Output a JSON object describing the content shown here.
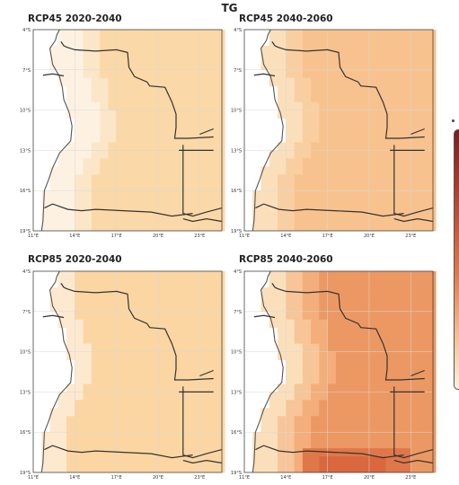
{
  "figure": {
    "title": "TG"
  },
  "legend": {
    "colormap": [
      "#fdf0dc",
      "#f6c28e",
      "#e07a45",
      "#b5412c",
      "#7a1f1f"
    ],
    "position": "right"
  },
  "panels": [
    {
      "id": "rcp45-2020",
      "title": "RCP45 2020-2040",
      "dominant": "#fbd8a7",
      "coastal": [
        [
          "#fdf2e2",
          3
        ],
        [
          "#fbe6c8",
          2
        ]
      ],
      "hot": []
    },
    {
      "id": "rcp45-2040",
      "title": "RCP45 2040-2060",
      "dominant": "#f8c28e",
      "coastal": [
        [
          "#fbdfbb",
          2
        ],
        [
          "#f9cfa1",
          2
        ]
      ],
      "hot": []
    },
    {
      "id": "rcp85-2020",
      "title": "RCP85 2020-2040",
      "dominant": "#fbd6a3",
      "coastal": [
        [
          "#fde9cf",
          2
        ]
      ],
      "hot": []
    },
    {
      "id": "rcp85-2040",
      "title": "RCP85 2040-2060",
      "dominant": "#ec9863",
      "coastal": [
        [
          "#fbdfbb",
          2
        ],
        [
          "#f7c598",
          2
        ],
        [
          "#f3ae7b",
          2
        ]
      ],
      "hot": [
        "#e0774a",
        "#d9683e"
      ]
    }
  ],
  "axes": {
    "lat_ticks": [
      "4°S",
      "7°S",
      "10°S",
      "13°S",
      "16°S",
      "19°S"
    ],
    "lon_ticks": [
      "11°E",
      "14°E",
      "17°E",
      "20°E",
      "23°E"
    ]
  },
  "icons": {
    "colorbar": "colorbar-icon"
  }
}
